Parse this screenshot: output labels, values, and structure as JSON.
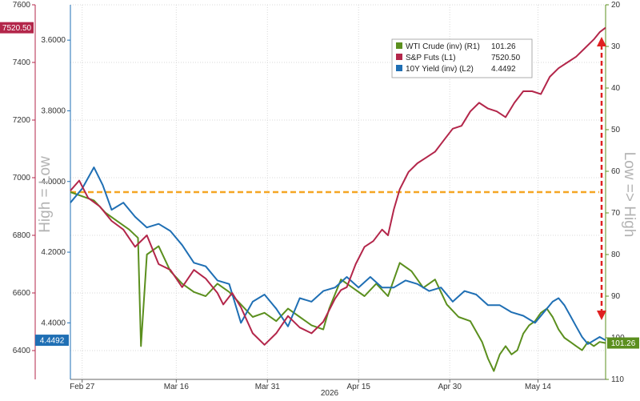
{
  "chart_data": {
    "type": "line",
    "title": "",
    "year_label": "2026",
    "x_ticks": [
      "Feb 27",
      "Mar 16",
      "Mar 31",
      "Apr 15",
      "Apr 30",
      "May 14"
    ],
    "axes": {
      "left_outer": {
        "name": "S&P Futs",
        "min": 6300,
        "max": 7600,
        "ticks": [
          "6400",
          "6600",
          "6800",
          "7000",
          "7200",
          "7400",
          "7600"
        ],
        "color": "#b3264a"
      },
      "left_inner": {
        "name": "10Y Yield",
        "inverted": true,
        "min": 3.5,
        "max": 4.56,
        "ticks": [
          "3.6000",
          "3.8000",
          "4.0000",
          "4.2000",
          "4.4000"
        ],
        "color": "#1f6fb4"
      },
      "right": {
        "name": "WTI Crude",
        "inverted": true,
        "min": 20,
        "max": 110,
        "ticks": [
          "20",
          "30",
          "40",
          "50",
          "60",
          "70",
          "80",
          "90",
          "100",
          "110"
        ],
        "color": "#5b8f1e"
      },
      "left_side_label": "High = Low",
      "right_side_label": "Low => High"
    },
    "legend": [
      {
        "label": "WTI Crude (inv) (R1)",
        "value": "101.26",
        "color": "#5b8f1e"
      },
      {
        "label": "S&P Futs (L1)",
        "value": "7520.50",
        "color": "#b3264a"
      },
      {
        "label": "10Y Yield (inv) (L2)",
        "value": "4.4492",
        "color": "#1f6fb4"
      }
    ],
    "last_value_tags": {
      "sp": "7520.50",
      "yield": "4.4492",
      "crude": "101.26"
    },
    "reference_line": {
      "axis": "left_outer",
      "value": 6950,
      "color": "#f5a623"
    },
    "series": [
      {
        "name": "S&P Futs",
        "axis": "left_outer",
        "color": "#b3264a",
        "points": [
          [
            0,
            6955
          ],
          [
            3,
            6990
          ],
          [
            6,
            6930
          ],
          [
            10,
            6900
          ],
          [
            14,
            6850
          ],
          [
            18,
            6820
          ],
          [
            22,
            6760
          ],
          [
            26,
            6800
          ],
          [
            30,
            6700
          ],
          [
            34,
            6680
          ],
          [
            38,
            6620
          ],
          [
            42,
            6680
          ],
          [
            46,
            6650
          ],
          [
            50,
            6600
          ],
          [
            52,
            6560
          ],
          [
            55,
            6600
          ],
          [
            58,
            6550
          ],
          [
            62,
            6460
          ],
          [
            66,
            6420
          ],
          [
            70,
            6460
          ],
          [
            74,
            6520
          ],
          [
            78,
            6480
          ],
          [
            82,
            6460
          ],
          [
            86,
            6500
          ],
          [
            90,
            6580
          ],
          [
            92,
            6610
          ],
          [
            94,
            6620
          ],
          [
            97,
            6700
          ],
          [
            100,
            6760
          ],
          [
            103,
            6780
          ],
          [
            106,
            6820
          ],
          [
            108,
            6800
          ],
          [
            110,
            6890
          ],
          [
            112,
            6960
          ],
          [
            115,
            7020
          ],
          [
            118,
            7050
          ],
          [
            121,
            7070
          ],
          [
            124,
            7090
          ],
          [
            127,
            7130
          ],
          [
            130,
            7170
          ],
          [
            133,
            7180
          ],
          [
            136,
            7230
          ],
          [
            139,
            7260
          ],
          [
            142,
            7240
          ],
          [
            145,
            7230
          ],
          [
            148,
            7210
          ],
          [
            151,
            7260
          ],
          [
            154,
            7300
          ],
          [
            157,
            7300
          ],
          [
            160,
            7290
          ],
          [
            163,
            7350
          ],
          [
            166,
            7380
          ],
          [
            169,
            7400
          ],
          [
            172,
            7420
          ],
          [
            175,
            7450
          ],
          [
            178,
            7480
          ],
          [
            180,
            7505
          ],
          [
            182,
            7520.5
          ]
        ]
      },
      {
        "name": "10Y Yield",
        "axis": "left_inner",
        "color": "#1f6fb4",
        "points": [
          [
            0,
            4.06
          ],
          [
            4,
            4.02
          ],
          [
            8,
            3.96
          ],
          [
            11,
            4.01
          ],
          [
            14,
            4.08
          ],
          [
            18,
            4.06
          ],
          [
            22,
            4.1
          ],
          [
            26,
            4.13
          ],
          [
            30,
            4.12
          ],
          [
            34,
            4.14
          ],
          [
            38,
            4.18
          ],
          [
            42,
            4.23
          ],
          [
            46,
            4.24
          ],
          [
            50,
            4.28
          ],
          [
            54,
            4.29
          ],
          [
            58,
            4.4
          ],
          [
            62,
            4.34
          ],
          [
            66,
            4.32
          ],
          [
            70,
            4.36
          ],
          [
            74,
            4.41
          ],
          [
            78,
            4.33
          ],
          [
            82,
            4.34
          ],
          [
            86,
            4.31
          ],
          [
            90,
            4.3
          ],
          [
            94,
            4.27
          ],
          [
            98,
            4.3
          ],
          [
            102,
            4.27
          ],
          [
            106,
            4.3
          ],
          [
            110,
            4.3
          ],
          [
            114,
            4.28
          ],
          [
            118,
            4.29
          ],
          [
            122,
            4.31
          ],
          [
            126,
            4.3
          ],
          [
            130,
            4.34
          ],
          [
            134,
            4.31
          ],
          [
            138,
            4.32
          ],
          [
            142,
            4.35
          ],
          [
            146,
            4.35
          ],
          [
            150,
            4.37
          ],
          [
            154,
            4.38
          ],
          [
            158,
            4.4
          ],
          [
            162,
            4.36
          ],
          [
            164,
            4.34
          ],
          [
            166,
            4.33
          ],
          [
            168,
            4.35
          ],
          [
            170,
            4.38
          ],
          [
            172,
            4.41
          ],
          [
            174,
            4.44
          ],
          [
            176,
            4.46
          ],
          [
            178,
            4.45
          ],
          [
            180,
            4.44
          ],
          [
            182,
            4.4492
          ]
        ]
      },
      {
        "name": "WTI Crude",
        "axis": "right",
        "color": "#5b8f1e",
        "points": [
          [
            0,
            65
          ],
          [
            4,
            66
          ],
          [
            8,
            67
          ],
          [
            12,
            70
          ],
          [
            16,
            72
          ],
          [
            20,
            74
          ],
          [
            23,
            76
          ],
          [
            24,
            102
          ],
          [
            26,
            80
          ],
          [
            30,
            78
          ],
          [
            34,
            84
          ],
          [
            38,
            87
          ],
          [
            42,
            89
          ],
          [
            46,
            90
          ],
          [
            50,
            87
          ],
          [
            54,
            89
          ],
          [
            58,
            92
          ],
          [
            62,
            95
          ],
          [
            66,
            94
          ],
          [
            70,
            96
          ],
          [
            74,
            93
          ],
          [
            78,
            95
          ],
          [
            82,
            97
          ],
          [
            86,
            98
          ],
          [
            88,
            93
          ],
          [
            92,
            86
          ],
          [
            96,
            88
          ],
          [
            100,
            90
          ],
          [
            104,
            87
          ],
          [
            108,
            90
          ],
          [
            112,
            82
          ],
          [
            116,
            84
          ],
          [
            120,
            88
          ],
          [
            124,
            86
          ],
          [
            128,
            92
          ],
          [
            132,
            95
          ],
          [
            136,
            96
          ],
          [
            140,
            101
          ],
          [
            142,
            105
          ],
          [
            144,
            108
          ],
          [
            146,
            104
          ],
          [
            148,
            102
          ],
          [
            150,
            104
          ],
          [
            152,
            103
          ],
          [
            154,
            99
          ],
          [
            156,
            97
          ],
          [
            158,
            96
          ],
          [
            160,
            94
          ],
          [
            162,
            93
          ],
          [
            164,
            95
          ],
          [
            166,
            98
          ],
          [
            168,
            100
          ],
          [
            170,
            101
          ],
          [
            172,
            102
          ],
          [
            174,
            103
          ],
          [
            176,
            101
          ],
          [
            178,
            102
          ],
          [
            180,
            101
          ],
          [
            182,
            101.26
          ]
        ]
      }
    ]
  }
}
